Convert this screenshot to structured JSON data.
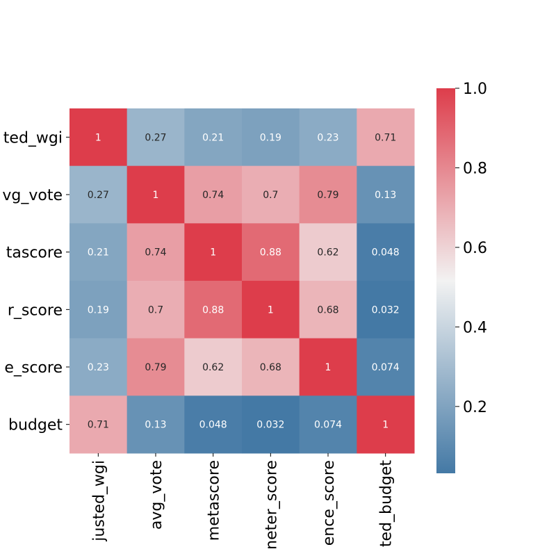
{
  "chart_data": {
    "type": "heatmap",
    "rows": [
      "adjusted_wgi",
      "avg_vote",
      "metascore",
      "tomatometer_score",
      "audience_score",
      "adjusted_budget"
    ],
    "row_tick_labels": [
      "ted_wgi",
      "vg_vote",
      "tascore",
      "r_score",
      "e_score",
      "budget"
    ],
    "columns": [
      "adjusted_wgi",
      "avg_vote",
      "metascore",
      "tomatometer_score",
      "audience_score",
      "adjusted_budget"
    ],
    "column_tick_labels": [
      "justed_wgi",
      "avg_vote",
      "metascore",
      "neter_score",
      "ence_score",
      "ted_budget"
    ],
    "values": [
      [
        1,
        0.27,
        0.21,
        0.19,
        0.23,
        0.71
      ],
      [
        0.27,
        1,
        0.74,
        0.7,
        0.79,
        0.13
      ],
      [
        0.21,
        0.74,
        1,
        0.88,
        0.62,
        0.048
      ],
      [
        0.19,
        0.7,
        0.88,
        1,
        0.68,
        0.032
      ],
      [
        0.23,
        0.79,
        0.62,
        0.68,
        1,
        0.074
      ],
      [
        0.71,
        0.13,
        0.048,
        0.032,
        0.074,
        1
      ]
    ],
    "annotations": [
      [
        "1",
        "0.27",
        "0.21",
        "0.19",
        "0.23",
        "0.71"
      ],
      [
        "0.27",
        "1",
        "0.74",
        "0.7",
        "0.79",
        "0.13"
      ],
      [
        "0.21",
        "0.74",
        "1",
        "0.88",
        "0.62",
        "0.048"
      ],
      [
        "0.19",
        "0.7",
        "0.88",
        "1",
        "0.68",
        "0.032"
      ],
      [
        "0.23",
        "0.79",
        "0.62",
        "0.68",
        "1",
        "0.074"
      ],
      [
        "0.71",
        "0.13",
        "0.048",
        "0.032",
        "0.074",
        "1"
      ]
    ],
    "colorbar": {
      "range": [
        0.032,
        1.0
      ],
      "ticks": [
        0.2,
        0.4,
        0.6,
        0.8,
        1.0
      ],
      "tick_labels": [
        "0.2",
        "0.4",
        "0.6",
        "0.8",
        "1.0"
      ],
      "colormap": "diverging blue-white-red",
      "colors": {
        "low": "#4479a5",
        "mid": "#f2f2f2",
        "high": "#dd3d4b"
      }
    },
    "annotation_text_colors": {
      "dark": "#262626",
      "light": "#ffffff"
    },
    "grid": false,
    "legend": "colorbar-right"
  }
}
